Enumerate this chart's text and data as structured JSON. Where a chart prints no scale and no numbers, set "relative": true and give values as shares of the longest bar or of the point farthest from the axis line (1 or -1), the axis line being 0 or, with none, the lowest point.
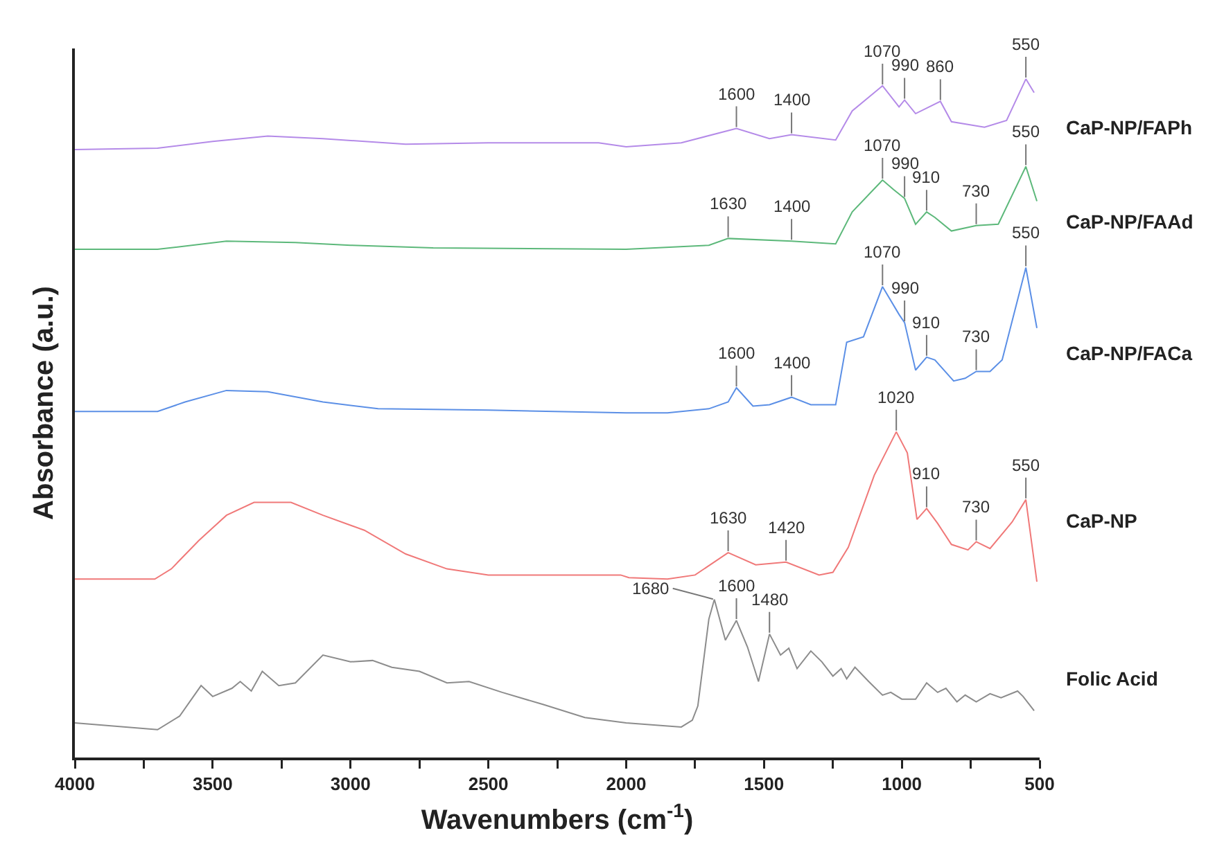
{
  "chart_data": {
    "type": "line",
    "relative": true,
    "xlabel": "Wavenumbers (cm$^{-1}$)",
    "ylabel": "Absorbance (a.u.)",
    "xlim": [
      4000,
      500
    ],
    "xticks": [
      4000,
      {
        "value": 3750,
        "label": null
      },
      3500,
      {
        "value": 3250,
        "label": null
      },
      3000,
      {
        "value": 2750,
        "label": null
      },
      2500,
      {
        "value": 2250,
        "label": null
      },
      2000,
      {
        "value": 1750,
        "label": null
      },
      1500,
      {
        "value": 1250,
        "label": null
      },
      1000,
      {
        "value": 750,
        "label": null
      },
      500
    ],
    "grid": false,
    "legend": false,
    "marker": "none",
    "line_style": "solid",
    "series": [
      {
        "name": "CaP-NP/FAPh",
        "color": "#b48ae8",
        "x": [
          4000,
          3700,
          3500,
          3300,
          3100,
          2800,
          2500,
          2100,
          2000,
          1800,
          1600,
          1480,
          1400,
          1240,
          1180,
          1070,
          1010,
          990,
          950,
          860,
          820,
          700,
          620,
          550,
          520
        ],
        "values": [
          0.896,
          0.898,
          0.908,
          0.916,
          0.912,
          0.904,
          0.906,
          0.906,
          0.9,
          0.906,
          0.927,
          0.912,
          0.918,
          0.91,
          0.953,
          0.99,
          0.959,
          0.969,
          0.949,
          0.967,
          0.937,
          0.929,
          0.939,
          1.0,
          0.98
        ]
      },
      {
        "name": "CaP-NP/FAAd",
        "color": "#5cb87a",
        "x": [
          4000,
          3700,
          3450,
          3200,
          3000,
          2700,
          2000,
          1700,
          1630,
          1400,
          1240,
          1180,
          1070,
          1030,
          990,
          950,
          910,
          880,
          820,
          730,
          650,
          550,
          510
        ],
        "values": [
          0.749,
          0.749,
          0.761,
          0.759,
          0.755,
          0.751,
          0.749,
          0.755,
          0.765,
          0.761,
          0.757,
          0.804,
          0.851,
          0.837,
          0.824,
          0.786,
          0.804,
          0.796,
          0.776,
          0.784,
          0.786,
          0.871,
          0.82
        ]
      },
      {
        "name": "CaP-NP/FACa",
        "color": "#5b8fe6",
        "x": [
          4000,
          3700,
          3600,
          3450,
          3300,
          3100,
          2900,
          2500,
          2000,
          1850,
          1700,
          1630,
          1600,
          1540,
          1480,
          1400,
          1330,
          1240,
          1200,
          1139,
          1070,
          1010,
          990,
          950,
          910,
          880,
          812,
          770,
          730,
          680,
          636,
          550,
          510
        ],
        "values": [
          0.51,
          0.51,
          0.524,
          0.541,
          0.539,
          0.524,
          0.514,
          0.512,
          0.508,
          0.508,
          0.514,
          0.524,
          0.545,
          0.518,
          0.52,
          0.531,
          0.52,
          0.52,
          0.612,
          0.62,
          0.694,
          0.653,
          0.641,
          0.571,
          0.59,
          0.586,
          0.555,
          0.559,
          0.569,
          0.569,
          0.586,
          0.722,
          0.633
        ]
      },
      {
        "name": "CaP-NP",
        "color": "#f07878",
        "x": [
          4000,
          3710,
          3650,
          3550,
          3450,
          3350,
          3216,
          3100,
          2950,
          2800,
          2650,
          2500,
          2020,
          1990,
          1850,
          1750,
          1630,
          1530,
          1420,
          1300,
          1250,
          1194,
          1100,
          1020,
          980,
          945,
          910,
          870,
          820,
          760,
          730,
          680,
          600,
          550,
          510
        ],
        "values": [
          0.263,
          0.263,
          0.278,
          0.32,
          0.357,
          0.376,
          0.376,
          0.357,
          0.335,
          0.3,
          0.278,
          0.269,
          0.269,
          0.265,
          0.263,
          0.269,
          0.302,
          0.284,
          0.288,
          0.269,
          0.273,
          0.31,
          0.416,
          0.48,
          0.449,
          0.351,
          0.367,
          0.345,
          0.314,
          0.306,
          0.318,
          0.308,
          0.347,
          0.38,
          0.259
        ]
      },
      {
        "name": "Folic Acid",
        "color": "#8c8c8c",
        "x": [
          4000,
          3700,
          3620,
          3542,
          3500,
          3430,
          3400,
          3360,
          3320,
          3260,
          3200,
          3100,
          3000,
          2920,
          2850,
          2750,
          2650,
          2570,
          2450,
          2300,
          2150,
          2000,
          1800,
          1760,
          1740,
          1700,
          1680,
          1640,
          1600,
          1560,
          1520,
          1480,
          1440,
          1410,
          1380,
          1330,
          1290,
          1250,
          1220,
          1200,
          1170,
          1120,
          1070,
          1040,
          1000,
          950,
          910,
          870,
          840,
          800,
          770,
          730,
          680,
          640,
          580,
          560,
          520
        ],
        "values": [
          0.051,
          0.041,
          0.061,
          0.106,
          0.09,
          0.102,
          0.112,
          0.098,
          0.127,
          0.106,
          0.11,
          0.151,
          0.141,
          0.143,
          0.133,
          0.127,
          0.11,
          0.112,
          0.096,
          0.078,
          0.059,
          0.051,
          0.045,
          0.055,
          0.076,
          0.204,
          0.233,
          0.173,
          0.202,
          0.163,
          0.112,
          0.182,
          0.151,
          0.161,
          0.131,
          0.157,
          0.141,
          0.12,
          0.131,
          0.116,
          0.133,
          0.112,
          0.092,
          0.096,
          0.086,
          0.086,
          0.11,
          0.096,
          0.102,
          0.082,
          0.092,
          0.082,
          0.094,
          0.088,
          0.098,
          0.09,
          0.069
        ]
      }
    ],
    "annotations": [
      {
        "text": "1070",
        "x": 1070,
        "y": 0.99
      },
      {
        "text": "990",
        "x": 990,
        "y": 0.969
      },
      {
        "text": "860",
        "x": 860,
        "y": 0.967
      },
      {
        "text": "550",
        "x": 550,
        "y": 1.0
      },
      {
        "text": "1600",
        "x": 1600,
        "y": 0.927
      },
      {
        "text": "1400",
        "x": 1400,
        "y": 0.918
      },
      {
        "text": "1070",
        "x": 1070,
        "y": 0.851
      },
      {
        "text": "990",
        "x": 990,
        "y": 0.824
      },
      {
        "text": "910",
        "x": 910,
        "y": 0.804
      },
      {
        "text": "730",
        "x": 730,
        "y": 0.784
      },
      {
        "text": "550",
        "x": 550,
        "y": 0.871
      },
      {
        "text": "1630",
        "x": 1630,
        "y": 0.765
      },
      {
        "text": "1400",
        "x": 1400,
        "y": 0.761
      },
      {
        "text": "1070",
        "x": 1070,
        "y": 0.694
      },
      {
        "text": "990",
        "x": 990,
        "y": 0.641
      },
      {
        "text": "910",
        "x": 910,
        "y": 0.59
      },
      {
        "text": "730",
        "x": 730,
        "y": 0.569
      },
      {
        "text": "550",
        "x": 550,
        "y": 0.722
      },
      {
        "text": "1600",
        "x": 1600,
        "y": 0.545
      },
      {
        "text": "1400",
        "x": 1400,
        "y": 0.531
      },
      {
        "text": "1020",
        "x": 1020,
        "y": 0.48
      },
      {
        "text": "910",
        "x": 910,
        "y": 0.367
      },
      {
        "text": "730",
        "x": 730,
        "y": 0.318
      },
      {
        "text": "550",
        "x": 550,
        "y": 0.38
      },
      {
        "text": "1630",
        "x": 1630,
        "y": 0.302
      },
      {
        "text": "1420",
        "x": 1420,
        "y": 0.288
      },
      {
        "text": "1680",
        "x": 1680,
        "y": 0.233
      },
      {
        "text": "1600",
        "x": 1600,
        "y": 0.202
      },
      {
        "text": "1480",
        "x": 1480,
        "y": 0.182
      }
    ]
  }
}
